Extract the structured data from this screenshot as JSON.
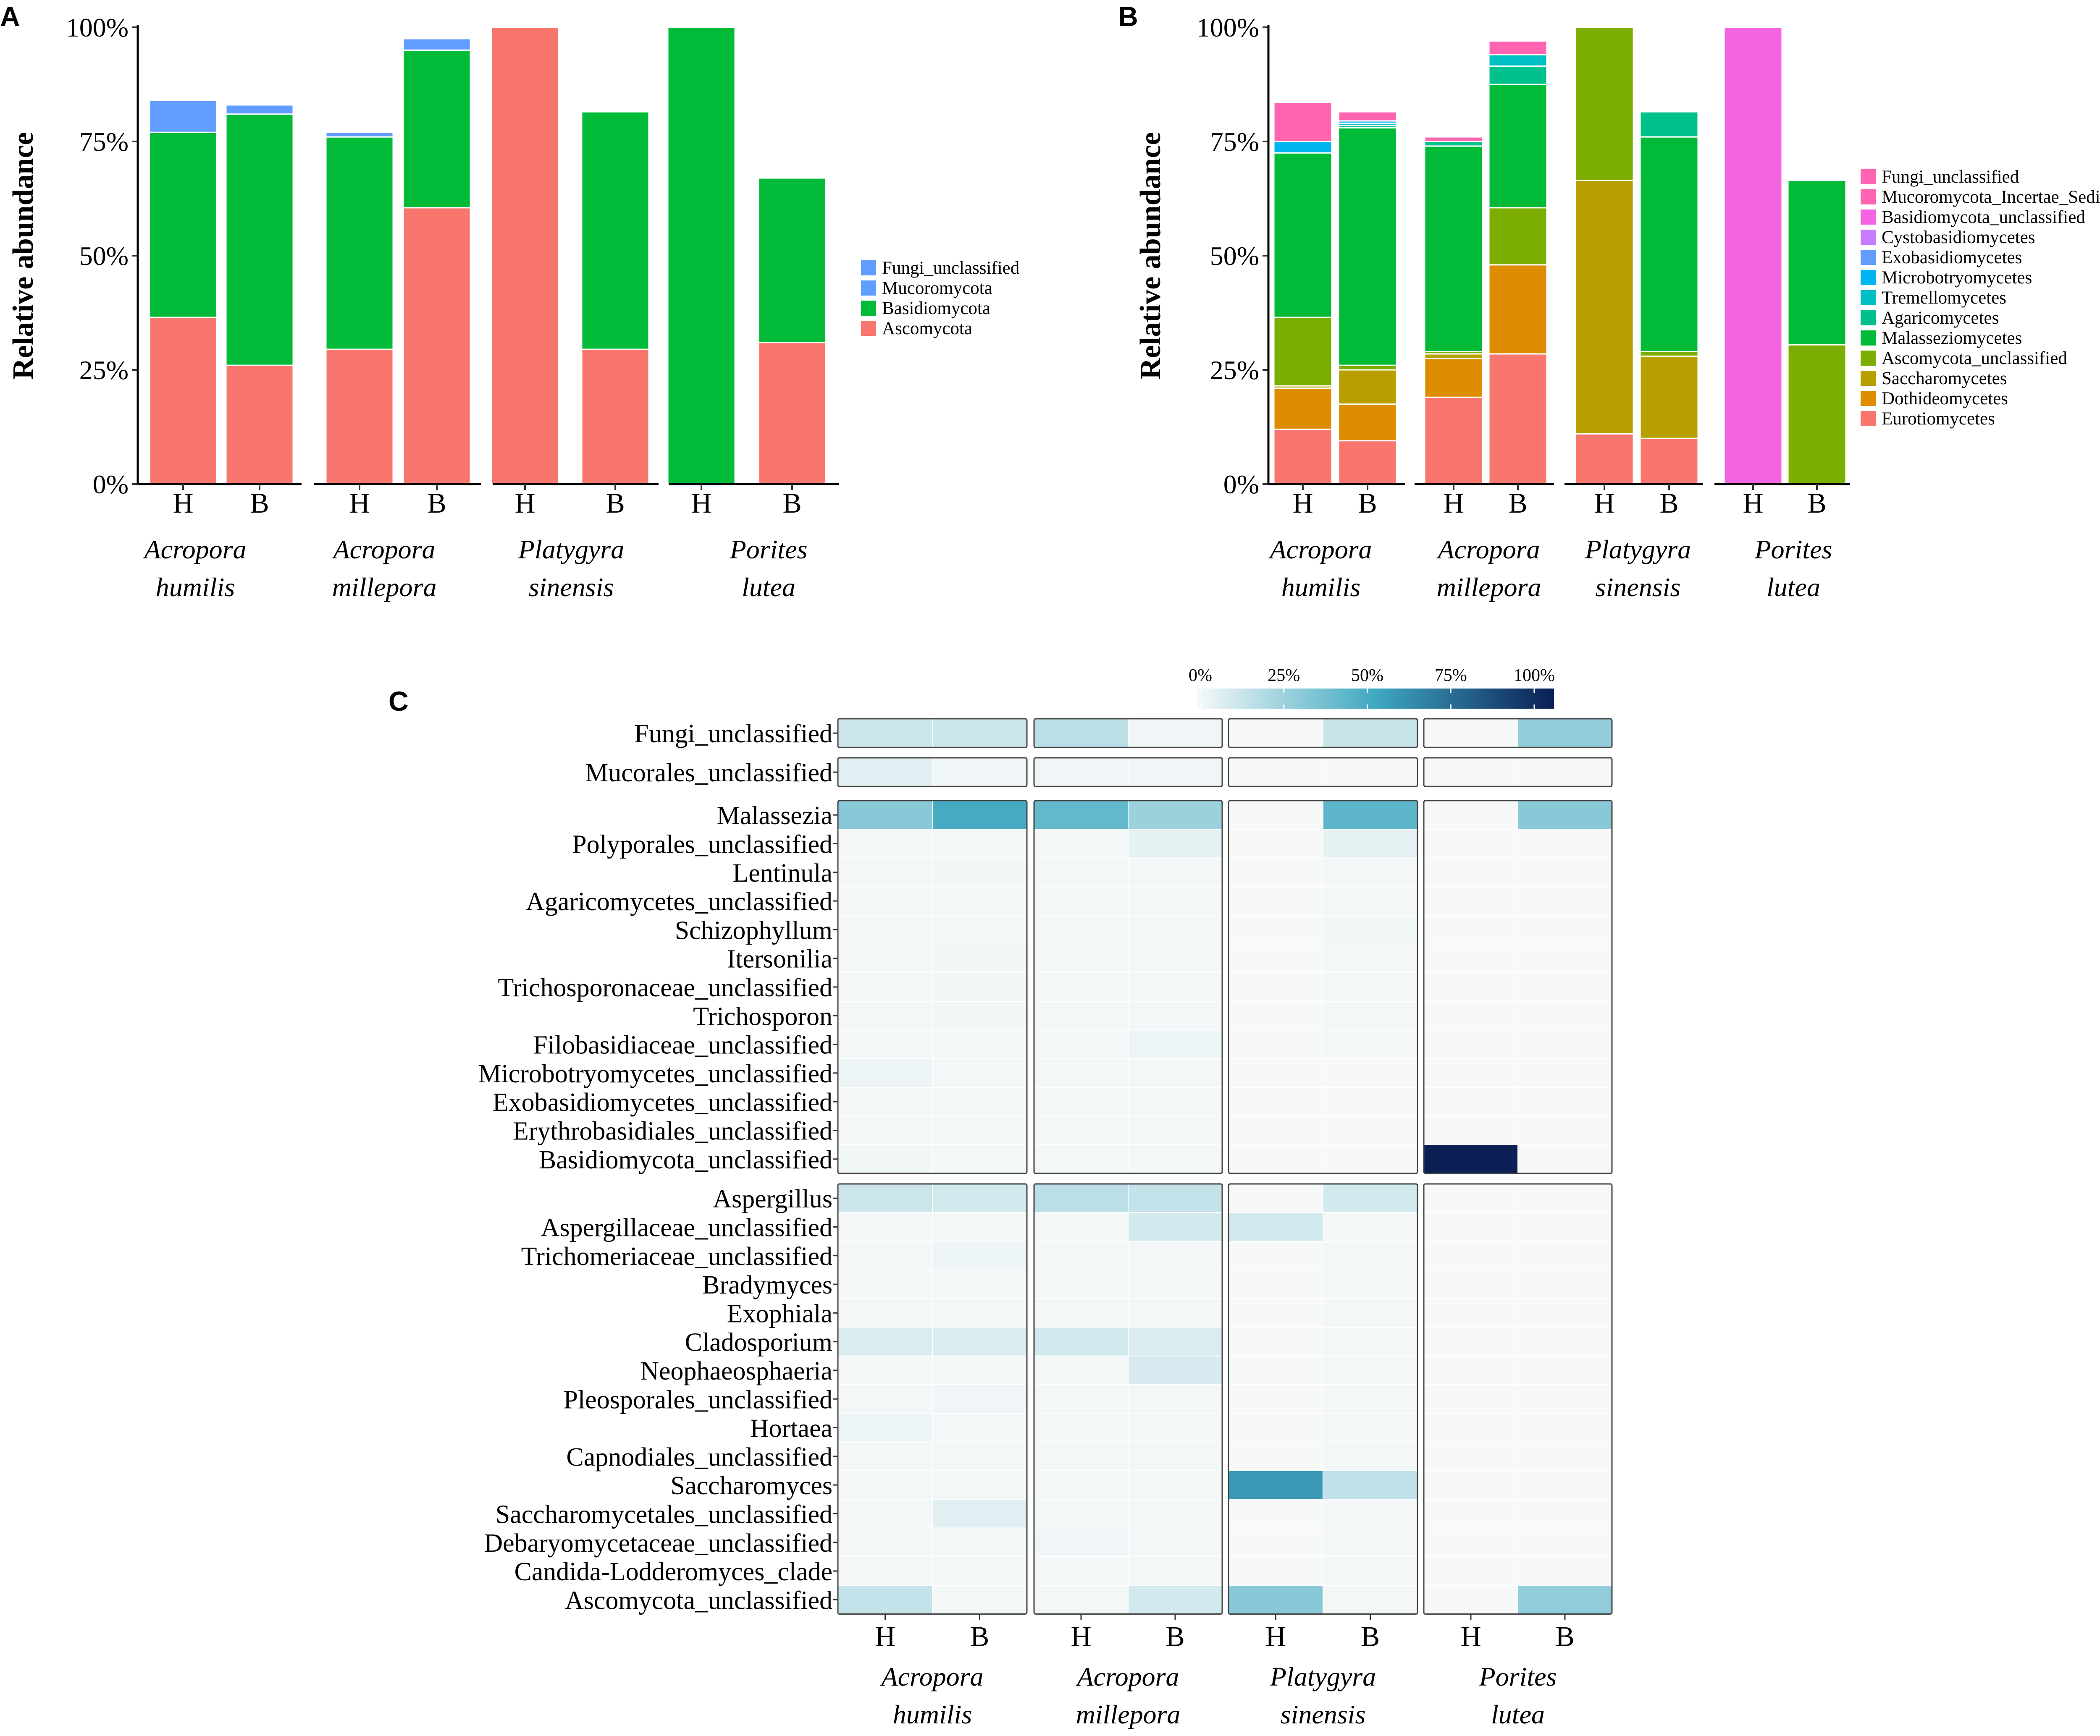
{
  "groups": [
    {
      "line1": "Acropora",
      "line2": "humilis"
    },
    {
      "line1": "Acropora",
      "line2": "millepora"
    },
    {
      "line1": "Platygyra",
      "line2": "sinensis"
    },
    {
      "line1": "Porites",
      "line2": "lutea"
    }
  ],
  "chart_data": [
    {
      "panel": "A",
      "type": "bar",
      "stacked": true,
      "ylabel": "Relative abundance",
      "ylim": [
        0,
        100
      ],
      "yticks": [
        "0%",
        "25%",
        "50%",
        "75%",
        "100%"
      ],
      "categories": [
        "H",
        "B",
        "H",
        "B",
        "H",
        "B",
        "H",
        "B"
      ],
      "series": [
        {
          "name": "Ascomycota",
          "color": "#F8766D",
          "values": [
            36.5,
            26,
            29.5,
            60.5,
            100,
            29.5,
            0,
            31
          ]
        },
        {
          "name": "Basidiomycota",
          "color": "#00BA38",
          "values": [
            40.5,
            55,
            46.5,
            34.5,
            0,
            52,
            100,
            36
          ]
        },
        {
          "name": "Mucoromycota",
          "color": "#619CFF",
          "values": [
            0,
            0,
            0,
            0,
            0,
            0,
            0,
            0
          ]
        },
        {
          "name": "Fungi_unclassified",
          "color": "#619CFF",
          "values": [
            7,
            2,
            1,
            2.5,
            0,
            0,
            0,
            0
          ]
        }
      ],
      "legend_order": [
        "Fungi_unclassified",
        "Mucoromycota",
        "Basidiomycota",
        "Ascomycota"
      ]
    },
    {
      "panel": "B",
      "type": "bar",
      "stacked": true,
      "ylabel": "Relative abundance",
      "ylim": [
        0,
        100
      ],
      "yticks": [
        "0%",
        "25%",
        "50%",
        "75%",
        "100%"
      ],
      "categories": [
        "H",
        "B",
        "H",
        "B",
        "H",
        "B",
        "H",
        "B"
      ],
      "series": [
        {
          "name": "Eurotiomycetes",
          "color": "#F8766D",
          "values": [
            12,
            9.5,
            19,
            28.5,
            11,
            10,
            0,
            0
          ]
        },
        {
          "name": "Dothideomycetes",
          "color": "#DE8C00",
          "values": [
            9,
            8,
            8.5,
            19.5,
            0,
            0,
            0,
            0
          ]
        },
        {
          "name": "Saccharomycetes",
          "color": "#B79F00",
          "values": [
            0.5,
            7.5,
            1,
            0,
            55.5,
            18,
            0,
            0
          ]
        },
        {
          "name": "Ascomycota_unclassified",
          "color": "#7CAE00",
          "values": [
            15,
            1,
            0.5,
            12.5,
            33.5,
            1,
            0,
            30.5
          ]
        },
        {
          "name": "Malasseziomycetes",
          "color": "#00BA38",
          "values": [
            36,
            52,
            45,
            27,
            0,
            47,
            0,
            36
          ]
        },
        {
          "name": "Agaricomycetes",
          "color": "#00C08B",
          "values": [
            0,
            0.5,
            1,
            4,
            0,
            5.5,
            0,
            0
          ]
        },
        {
          "name": "Tremellomycetes",
          "color": "#00BFC4",
          "values": [
            0,
            0.5,
            0,
            2.5,
            0,
            0,
            0,
            0
          ]
        },
        {
          "name": "Microbotryomycetes",
          "color": "#00B4F0",
          "values": [
            2.5,
            0.5,
            0,
            0,
            0,
            0,
            0,
            0
          ]
        },
        {
          "name": "Exobasidiomycetes",
          "color": "#619CFF",
          "values": [
            0,
            0,
            0,
            0,
            0,
            0,
            0,
            0
          ]
        },
        {
          "name": "Cystobasidiomycetes",
          "color": "#C77CFF",
          "values": [
            0,
            0,
            0,
            0,
            0,
            0,
            0,
            0
          ]
        },
        {
          "name": "Basidiomycota_unclassified",
          "color": "#F564E3",
          "values": [
            0,
            0,
            0,
            0,
            0,
            0,
            100,
            0
          ]
        },
        {
          "name": "Mucoromycota_Incertae_Sedis",
          "color": "#FF64B0",
          "values": [
            0,
            0,
            0,
            0,
            0,
            0,
            0,
            0
          ]
        },
        {
          "name": "Fungi_unclassified",
          "color": "#FF64B0",
          "values": [
            8.5,
            2,
            1,
            3,
            0,
            0,
            0,
            0
          ]
        }
      ],
      "legend_order": [
        "Fungi_unclassified",
        "Mucoromycota_Incertae_Sedis",
        "Basidiomycota_unclassified",
        "Cystobasidiomycetes",
        "Exobasidiomycetes",
        "Microbotryomycetes",
        "Tremellomycetes",
        "Agaricomycetes",
        "Malasseziomycetes",
        "Ascomycota_unclassified",
        "Saccharomycetes",
        "Dothideomycetes",
        "Eurotiomycetes"
      ]
    },
    {
      "panel": "C",
      "type": "heatmap",
      "colorbar": {
        "ticks": [
          "0%",
          "25%",
          "50%",
          "75%",
          "100%"
        ],
        "low_color": "#f7f9f9",
        "mid_color": "#3fa8c0",
        "high_color": "#0b1f55"
      },
      "columns": [
        "H",
        "B",
        "H",
        "B",
        "H",
        "B",
        "H",
        "B"
      ],
      "blocks": [
        {
          "rows": [
            "Fungi_unclassified"
          ],
          "values": [
            [
              12,
              12,
              16,
              2,
              0,
              13,
              0,
              27
            ]
          ]
        },
        {
          "rows": [
            "Mucorales_unclassified"
          ],
          "values": [
            [
              6,
              2,
              2,
              2,
              0,
              0,
              0,
              0
            ]
          ]
        },
        {
          "rows": [
            "Malassezia",
            "Polyporales_unclassified",
            "Lentinula",
            "Agaricomycetes_unclassified",
            "Schizophyllum",
            "Itersonilia",
            "Trichosporonaceae_unclassified",
            "Trichosporon",
            "Filobasidiaceae_unclassified",
            "Microbotryomycetes_unclassified",
            "Exobasidiomycetes_unclassified",
            "Erythrobasidiales_unclassified",
            "Basidiomycota_unclassified"
          ],
          "values": [
            [
              30,
              48,
              40,
              25,
              0,
              42,
              0,
              30
            ],
            [
              1,
              1,
              1,
              5,
              0,
              5,
              0,
              0
            ],
            [
              1,
              1.5,
              1,
              1,
              0,
              1,
              0,
              0
            ],
            [
              1,
              1,
              1,
              1,
              0,
              1,
              0,
              0
            ],
            [
              1,
              1,
              1,
              1,
              0,
              1.5,
              0,
              0
            ],
            [
              1,
              1.5,
              1,
              1,
              0,
              1,
              0,
              0
            ],
            [
              1,
              1.5,
              1,
              1,
              0,
              1,
              0,
              0
            ],
            [
              1,
              1.5,
              1,
              1,
              0,
              1,
              0,
              0
            ],
            [
              1,
              1,
              1,
              3,
              0,
              1,
              0,
              0
            ],
            [
              3,
              1,
              1,
              1,
              0,
              0,
              0,
              0
            ],
            [
              1,
              1,
              1,
              1,
              0,
              0,
              0,
              0
            ],
            [
              1,
              1,
              1,
              1,
              0,
              0,
              0,
              0
            ],
            [
              1.5,
              1,
              1,
              1,
              0,
              0,
              100,
              0
            ]
          ]
        },
        {
          "rows": [
            "Aspergillus",
            "Aspergillaceae_unclassified",
            "Trichomeriaceae_unclassified",
            "Bradymyces",
            "Exophiala",
            "Cladosporium",
            "Neophaeosphaeria",
            "Pleosporales_unclassified",
            "Hortaea",
            "Capnodiales_unclassified",
            "Saccharomyces",
            "Saccharomycetales_unclassified",
            "Debaryomycetaceae_unclassified",
            "Candida-Lodderomyces_clade",
            "Ascomycota_unclassified"
          ],
          "values": [
            [
              12,
              10,
              16,
              14,
              0,
              10,
              0,
              0
            ],
            [
              1,
              1,
              1,
              10,
              10,
              1,
              0,
              0
            ],
            [
              1,
              3,
              1,
              1,
              0,
              1,
              0,
              0
            ],
            [
              1,
              1,
              1,
              1,
              0,
              1,
              0,
              0
            ],
            [
              1,
              1,
              1,
              1,
              0,
              1,
              0,
              0
            ],
            [
              8,
              8,
              10,
              8,
              0,
              1,
              0,
              0
            ],
            [
              1,
              1,
              1,
              9,
              0,
              1,
              0,
              0
            ],
            [
              1,
              2,
              1,
              1,
              0,
              1,
              0,
              0
            ],
            [
              3,
              1,
              1,
              1,
              0,
              1,
              0,
              0
            ],
            [
              1,
              1,
              1,
              1,
              0,
              1,
              0,
              0
            ],
            [
              1,
              1,
              1,
              1,
              55,
              15,
              0,
              0
            ],
            [
              1,
              6,
              1,
              1,
              0,
              1,
              0,
              0
            ],
            [
              1,
              1,
              2,
              1,
              0,
              1,
              0,
              0
            ],
            [
              1,
              1,
              1,
              1,
              0,
              1,
              0,
              0
            ],
            [
              14,
              1,
              1,
              10,
              30,
              1,
              0,
              28
            ]
          ]
        }
      ]
    }
  ]
}
